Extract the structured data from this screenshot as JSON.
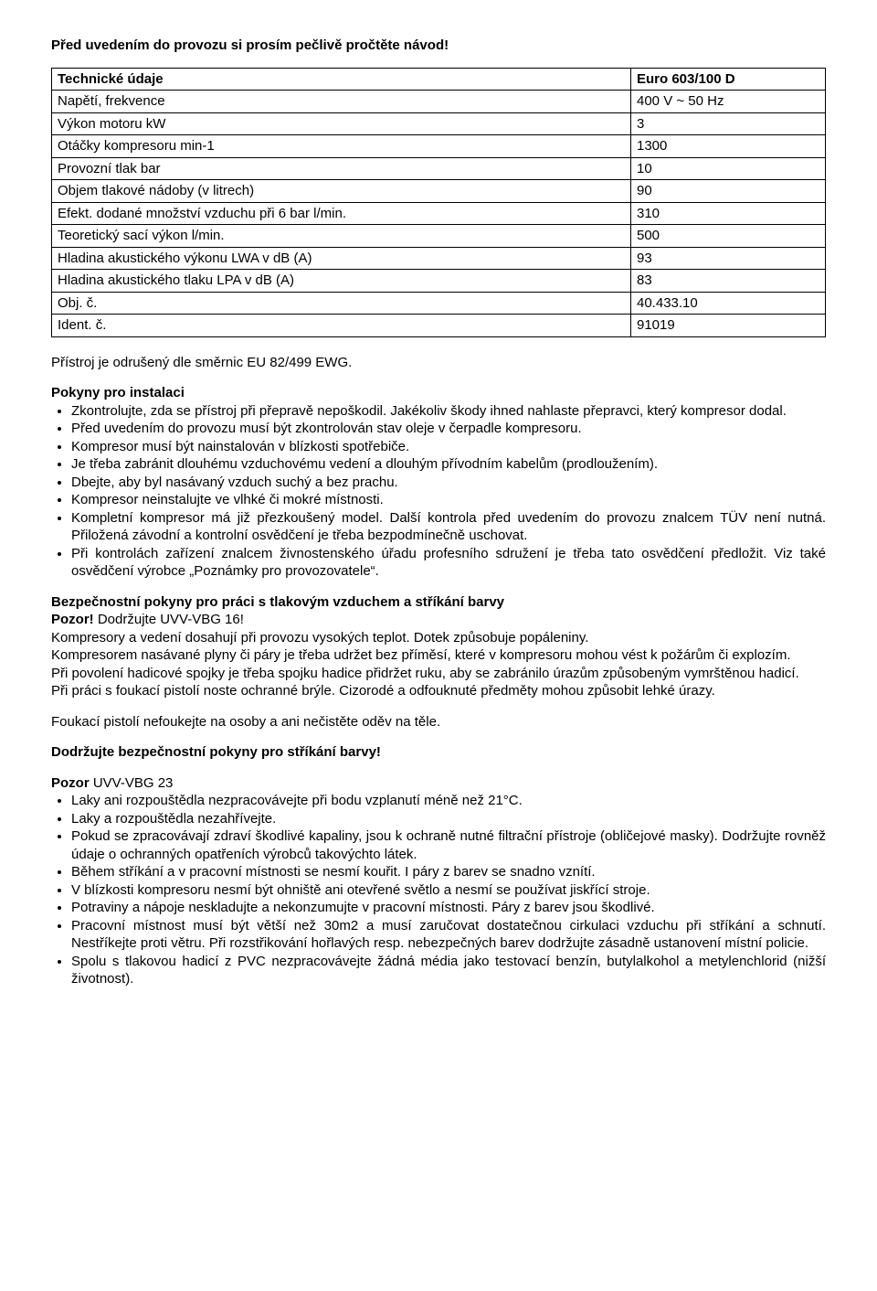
{
  "intro": "Před uvedením do provozu si prosím pečlivě pročtěte návod!",
  "table": {
    "header": {
      "label": "Technické údaje",
      "value": "Euro 603/100 D"
    },
    "rows": [
      {
        "label": "Napětí, frekvence",
        "value": "400 V ~ 50 Hz"
      },
      {
        "label": "Výkon motoru kW",
        "value": "3"
      },
      {
        "label": "Otáčky kompresoru min-1",
        "value": "1300"
      },
      {
        "label": "Provozní tlak bar",
        "value": "10"
      },
      {
        "label": "Objem tlakové nádoby (v litrech)",
        "value": "90"
      },
      {
        "label": "Efekt. dodané množství vzduchu při 6 bar l/min.",
        "value": "310"
      },
      {
        "label": "Teoretický sací výkon l/min.",
        "value": "500"
      },
      {
        "label": "Hladina akustického výkonu LWA v dB (A)",
        "value": "93"
      },
      {
        "label": "Hladina akustického tlaku LPA v dB (A)",
        "value": "83"
      },
      {
        "label": "Obj. č.",
        "value": "40.433.10"
      },
      {
        "label": "Ident. č.",
        "value": "91019"
      }
    ]
  },
  "compliance": "Přístroj je odrušený dle směrnic EU 82/499 EWG.",
  "install": {
    "head": "Pokyny pro instalaci",
    "items": [
      "Zkontrolujte, zda se přístroj při přepravě nepoškodil. Jakékoliv škody ihned nahlaste přepravci, který kompresor dodal.",
      "Před uvedením do provozu musí být zkontrolován stav oleje v čerpadle kompresoru.",
      "Kompresor musí být nainstalován v blízkosti spotřebiče.",
      "Je třeba zabránit dlouhému vzduchovému vedení a dlouhým přívodním kabelům (prodloužením).",
      "Dbejte, aby byl nasávaný vzduch suchý a bez prachu.",
      "Kompresor neinstalujte ve vlhké či mokré místnosti.",
      "Kompletní kompresor má již přezkoušený model. Další kontrola před uvedením do provozu znalcem TÜV není nutná. Přiložená závodní a kontrolní osvědčení je třeba bezpodmínečně uschovat.",
      "Při kontrolách zařízení znalcem živnostenského úřadu profesního sdružení je třeba tato osvědčení předložit. Viz také osvědčení výrobce „Poznámky pro provozovatele“."
    ]
  },
  "safety": {
    "head": "Bezpečnostní pokyny pro práci s tlakovým vzduchem a stříkání barvy",
    "warnLabel": "Pozor!",
    "warnText": " Dodržujte UVV-VBG 16!",
    "p1": "Kompresory a vedení dosahují při provozu vysokých teplot. Dotek způsobuje popáleniny.",
    "p2": "Kompresorem nasávané plyny či páry je třeba udržet bez příměsí, které v kompresoru mohou vést k požárům či explozím.",
    "p3": "Při povolení hadicové spojky je třeba spojku hadice přidržet ruku, aby se zabránilo úrazům způsobeným vymrštěnou hadicí.",
    "p4": "Při práci s foukací pistolí noste ochranné brýle. Cizorodé a odfouknuté předměty mohou způsobit lehké úrazy.",
    "p5": "Foukací pistolí nefoukejte na osoby a ani nečistěte oděv na těle."
  },
  "paintHead": "Dodržujte bezpečnostní pokyny pro stříkání barvy!",
  "warn2": {
    "label": "Pozor",
    "text": " UVV-VBG 23",
    "items": [
      "Laky ani rozpouštědla nezpracovávejte při bodu vzplanutí méně než 21°C.",
      "Laky a rozpouštědla nezahřívejte.",
      "Pokud se zpracovávají zdraví škodlivé kapaliny, jsou k ochraně nutné filtrační přístroje (obličejové masky). Dodržujte rovněž údaje o ochranných opatřeních výrobců takovýchto látek.",
      "Během stříkání a v pracovní místnosti se nesmí kouřit. I páry z barev se snadno vznítí.",
      "V blízkosti kompresoru nesmí být ohniště ani otevřené světlo a nesmí se používat jiskřící stroje.",
      "Potraviny a nápoje neskladujte a nekonzumujte v pracovní místnosti. Páry z barev jsou škodlivé.",
      "Pracovní místnost musí být větší než 30m2 a musí zaručovat dostatečnou cirkulaci vzduchu při stříkání a schnutí. Nestříkejte proti větru. Při rozstřikování hořlavých resp. nebezpečných barev dodržujte zásadně ustanovení místní policie.",
      "Spolu s tlakovou hadicí z PVC nezpracovávejte žádná média jako testovací benzín, butylalkohol a metylenchlorid (nižší životnost)."
    ]
  }
}
